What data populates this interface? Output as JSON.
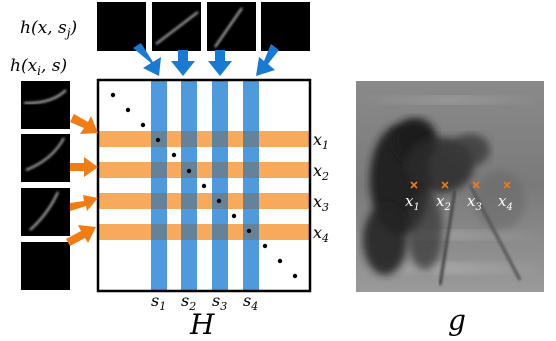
{
  "labels": {
    "h_x_sj": "h(x, s",
    "h_x_sj_sub": "j",
    "h_x_sj_close": ")",
    "h_xi_s": "h(x",
    "h_xi_s_sub": "i",
    "h_xi_s_close": ", s)",
    "matrix": "H",
    "image": "g"
  },
  "row_labels": [
    {
      "base": "x",
      "sub": "1"
    },
    {
      "base": "x",
      "sub": "2"
    },
    {
      "base": "x",
      "sub": "3"
    },
    {
      "base": "x",
      "sub": "4"
    }
  ],
  "col_labels": [
    {
      "base": "s",
      "sub": "1"
    },
    {
      "base": "s",
      "sub": "2"
    },
    {
      "base": "s",
      "sub": "3"
    },
    {
      "base": "s",
      "sub": "4"
    }
  ],
  "image_point_labels": [
    {
      "base": "x",
      "sub": "1"
    },
    {
      "base": "x",
      "sub": "2"
    },
    {
      "base": "x",
      "sub": "3"
    },
    {
      "base": "x",
      "sub": "4"
    }
  ],
  "colors": {
    "row_highlight": "#f7a14a",
    "col_highlight": "#3b8fd9",
    "arrow_blue": "#1a7ad1",
    "arrow_orange": "#f07c16",
    "marker": "#f07c16"
  }
}
